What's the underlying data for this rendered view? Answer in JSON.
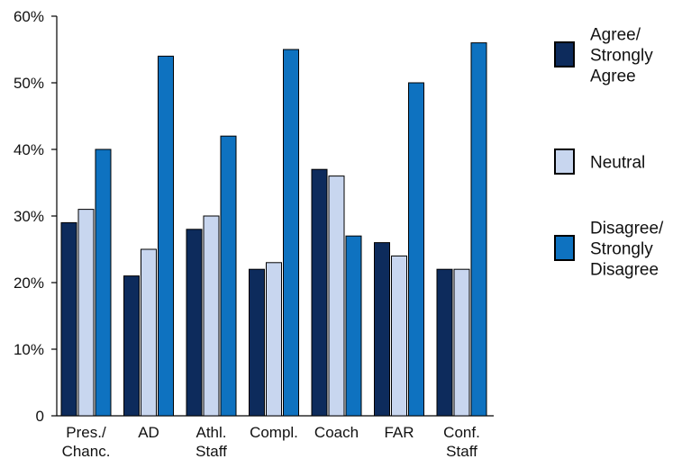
{
  "chart_data": {
    "type": "bar",
    "categories": [
      [
        "Pres./",
        "Chanc."
      ],
      [
        "AD"
      ],
      [
        "Athl.",
        "Staff"
      ],
      [
        "Compl."
      ],
      [
        "Coach"
      ],
      [
        "FAR"
      ],
      [
        "Conf.",
        "Staff"
      ]
    ],
    "series": [
      {
        "name": "Agree/ Strongly Agree",
        "legend_lines": [
          "Agree/",
          "Strongly",
          "Agree"
        ],
        "color": "#0d2b5c",
        "values": [
          29,
          21,
          28,
          22,
          37,
          26,
          22
        ]
      },
      {
        "name": "Neutral",
        "legend_lines": [
          "Neutral"
        ],
        "color": "#c8d6ef",
        "values": [
          31,
          25,
          30,
          23,
          36,
          24,
          22
        ]
      },
      {
        "name": "Disagree/ Strongly Disagree",
        "legend_lines": [
          "Disagree/",
          "Strongly",
          "Disagree"
        ],
        "color": "#0e72c0",
        "values": [
          40,
          54,
          42,
          55,
          27,
          50,
          56
        ]
      }
    ],
    "y_ticks": [
      {
        "value": 0,
        "label": "0"
      },
      {
        "value": 10,
        "label": "10%"
      },
      {
        "value": 20,
        "label": "20%"
      },
      {
        "value": 30,
        "label": "30%"
      },
      {
        "value": 40,
        "label": "40%"
      },
      {
        "value": 50,
        "label": "50%"
      },
      {
        "value": 60,
        "label": "60%"
      }
    ],
    "ylim": [
      0,
      60
    ],
    "grid": false,
    "legend_position": "right",
    "title": "",
    "xlabel": "",
    "ylabel": ""
  }
}
